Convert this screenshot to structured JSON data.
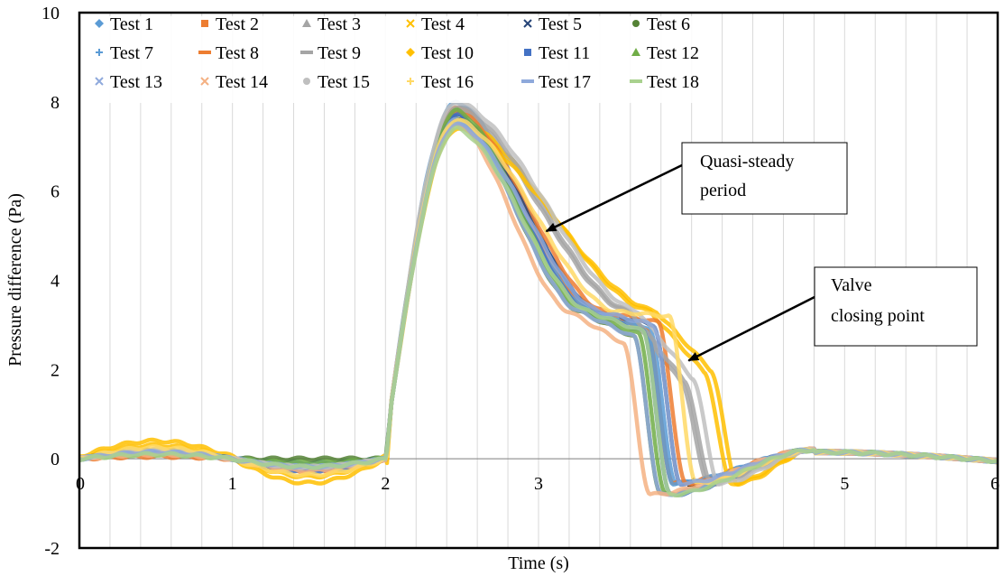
{
  "chart_data": {
    "type": "scatter",
    "title": "",
    "xlabel": "Time (s)",
    "ylabel": "Pressure difference (Pa)",
    "xlim": [
      0,
      6
    ],
    "ylim": [
      -2,
      10
    ],
    "x_ticks": [
      0,
      1,
      2,
      3,
      4,
      5,
      6
    ],
    "x_tick_labels": [
      "0",
      "1",
      "2",
      "3",
      "4",
      "5",
      "6"
    ],
    "y_ticks": [
      -2,
      0,
      2,
      4,
      6,
      8,
      10
    ],
    "y_tick_labels": [
      "-2",
      "0",
      "2",
      "4",
      "6",
      "8",
      "10"
    ],
    "grid": "vertical minor gridlines every 0.2 s",
    "legend_position": "top-left inside plot, 3 rows x 6 columns",
    "series": [
      {
        "name": "Test 1",
        "color": "#5B9BD5",
        "marker": "diamond",
        "closing_time": 3.72,
        "start": 0.0,
        "bump": 0.12,
        "pre": -0.1,
        "peak": 8.0
      },
      {
        "name": "Test 2",
        "color": "#ED7D31",
        "marker": "square",
        "closing_time": 3.7,
        "start": 0.0,
        "bump": 0.05,
        "pre": -0.3,
        "peak": 7.9
      },
      {
        "name": "Test 3",
        "color": "#A5A5A5",
        "marker": "triangle",
        "closing_time": 3.93,
        "start": 0.0,
        "bump": 0.15,
        "pre": -0.2,
        "peak": 7.8
      },
      {
        "name": "Test 4",
        "color": "#FFC000",
        "marker": "x",
        "closing_time": 4.08,
        "start": 0.05,
        "bump": 0.35,
        "pre": -0.5,
        "peak": 7.6
      },
      {
        "name": "Test 5",
        "color": "#264478",
        "marker": "x",
        "closing_time": 3.75,
        "start": 0.0,
        "bump": 0.18,
        "pre": -0.2,
        "peak": 7.7
      },
      {
        "name": "Test 6",
        "color": "#548235",
        "marker": "circle",
        "closing_time": 3.62,
        "start": 0.0,
        "bump": 0.12,
        "pre": 0.0,
        "peak": 7.6
      },
      {
        "name": "Test 7",
        "color": "#5B9BD5",
        "marker": "plus",
        "closing_time": 3.7,
        "start": 0.0,
        "bump": 0.15,
        "pre": -0.2,
        "peak": 7.5
      },
      {
        "name": "Test 8",
        "color": "#ED7D31",
        "marker": "dash",
        "closing_time": 3.78,
        "start": 0.0,
        "bump": 0.1,
        "pre": -0.3,
        "peak": 7.8
      },
      {
        "name": "Test 9",
        "color": "#A5A5A5",
        "marker": "dash",
        "closing_time": 3.95,
        "start": 0.0,
        "bump": 0.2,
        "pre": -0.2,
        "peak": 7.9
      },
      {
        "name": "Test 10",
        "color": "#FFC000",
        "marker": "diamond",
        "closing_time": 4.12,
        "start": 0.0,
        "bump": 0.3,
        "pre": -0.6,
        "peak": 7.4
      },
      {
        "name": "Test 11",
        "color": "#4472C4",
        "marker": "square",
        "closing_time": 3.68,
        "start": 0.0,
        "bump": 0.15,
        "pre": -0.3,
        "peak": 7.7
      },
      {
        "name": "Test 12",
        "color": "#70AD47",
        "marker": "triangle",
        "closing_time": 3.65,
        "start": 0.0,
        "bump": 0.1,
        "pre": -0.1,
        "peak": 7.8
      },
      {
        "name": "Test 13",
        "color": "#8FAADC",
        "marker": "x",
        "closing_time": 3.62,
        "start": 0.0,
        "bump": 0.15,
        "pre": -0.2,
        "peak": 7.6
      },
      {
        "name": "Test 14",
        "color": "#F4B183",
        "marker": "x",
        "closing_time": 3.55,
        "start": 0.0,
        "bump": 0.1,
        "pre": -0.3,
        "peak": 7.5
      },
      {
        "name": "Test 15",
        "color": "#BFBFBF",
        "marker": "circle",
        "closing_time": 4.0,
        "start": 0.0,
        "bump": 0.2,
        "pre": -0.2,
        "peak": 8.0
      },
      {
        "name": "Test 16",
        "color": "#FFD966",
        "marker": "plus",
        "closing_time": 3.85,
        "start": 0.0,
        "bump": 0.25,
        "pre": -0.4,
        "peak": 7.6
      },
      {
        "name": "Test 17",
        "color": "#8EA9DB",
        "marker": "dash",
        "closing_time": 3.75,
        "start": 0.0,
        "bump": 0.15,
        "pre": -0.2,
        "peak": 7.5
      },
      {
        "name": "Test 18",
        "color": "#A9D18E",
        "marker": "dash",
        "closing_time": 3.68,
        "start": 0.0,
        "bump": 0.1,
        "pre": -0.2,
        "peak": 7.4
      }
    ],
    "annotations": [
      {
        "text_lines": [
          "Quasi-steady",
          "period"
        ],
        "points_to_x": 3.05,
        "points_to_y": 5.1
      },
      {
        "text_lines": [
          "Valve",
          "closing point"
        ],
        "points_to_x": 3.98,
        "points_to_y": 2.2
      }
    ]
  }
}
